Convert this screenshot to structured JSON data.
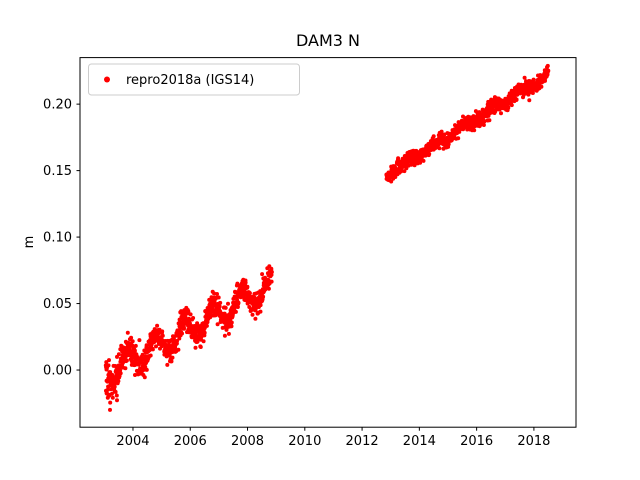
{
  "chart_data": {
    "type": "scatter",
    "title": "DAM3 N",
    "xlabel": "",
    "ylabel": "m",
    "xlim": [
      2002.15,
      2019.47
    ],
    "ylim": [
      -0.043,
      0.235
    ],
    "xticks": [
      2004,
      2006,
      2008,
      2010,
      2012,
      2014,
      2016,
      2018
    ],
    "xtick_labels": [
      "2004",
      "2006",
      "2008",
      "2010",
      "2012",
      "2014",
      "2016",
      "2018"
    ],
    "yticks": [
      0.0,
      0.05,
      0.1,
      0.15,
      0.2
    ],
    "ytick_labels": [
      "0.00",
      "0.05",
      "0.10",
      "0.15",
      "0.20"
    ],
    "grid": false,
    "legend": {
      "label": "repro2018a (IGS14)",
      "position": "upper left"
    },
    "marker_color": "#ff0000",
    "marker_radius": 2,
    "series": [
      {
        "name": "repro2018a (IGS14)",
        "segments": [
          {
            "x_start": 2003.05,
            "x_end": 2008.85,
            "y_start": -0.002,
            "y_end": 0.063,
            "n_points": 950,
            "noise_sd": 0.0045,
            "seasonal_amp": 0.009,
            "seasonal_phase": 0.55,
            "widen_early": true,
            "outliers": {
              "count": 9,
              "x_range": [
                2003.05,
                2003.45
              ],
              "y_min": -0.032,
              "y_max": -0.013
            }
          },
          {
            "x_start": 2012.85,
            "x_end": 2018.5,
            "y_start": 0.147,
            "y_end": 0.222,
            "n_points": 900,
            "noise_sd": 0.0028,
            "seasonal_amp": 0.0022,
            "seasonal_phase": 0.3,
            "widen_early": false
          }
        ]
      }
    ]
  }
}
